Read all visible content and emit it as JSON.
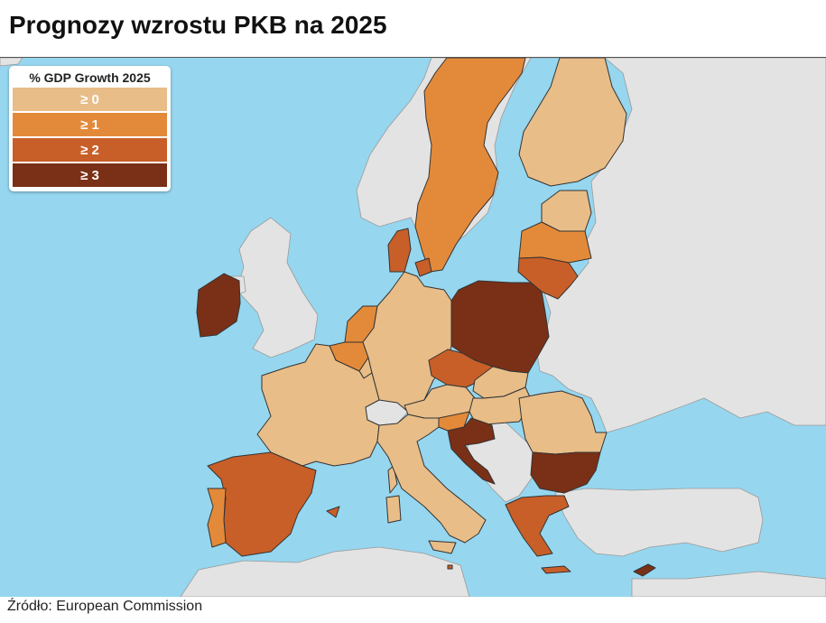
{
  "title": "Prognozy wzrostu PKB na 2025",
  "source": "Źródło: European Commission",
  "legend": {
    "title": "% GDP Growth 2025",
    "items": [
      {
        "label": "≥ 0",
        "color": "#e8bd88"
      },
      {
        "label": "≥ 1",
        "color": "#e38a3a"
      },
      {
        "label": "≥ 2",
        "color": "#c85f28"
      },
      {
        "label": "≥ 3",
        "color": "#7a3016"
      }
    ]
  },
  "colors": {
    "sea": "#96d6ef",
    "non_eu": "#e3e3e3",
    "border": "#333333"
  },
  "map_data": {
    "type": "choropleth",
    "countries": [
      {
        "name": "Poland",
        "category": "≥ 3"
      },
      {
        "name": "Ireland",
        "category": "≥ 3"
      },
      {
        "name": "Bulgaria",
        "category": "≥ 3"
      },
      {
        "name": "Croatia",
        "category": "≥ 3"
      },
      {
        "name": "Cyprus",
        "category": "≥ 3"
      },
      {
        "name": "Spain",
        "category": "≥ 2"
      },
      {
        "name": "Greece",
        "category": "≥ 2"
      },
      {
        "name": "Czechia",
        "category": "≥ 2"
      },
      {
        "name": "Denmark",
        "category": "≥ 2"
      },
      {
        "name": "Lithuania",
        "category": "≥ 2"
      },
      {
        "name": "Malta",
        "category": "≥ 2"
      },
      {
        "name": "Sweden",
        "category": "≥ 1"
      },
      {
        "name": "Portugal",
        "category": "≥ 1"
      },
      {
        "name": "Netherlands",
        "category": "≥ 1"
      },
      {
        "name": "Belgium",
        "category": "≥ 1"
      },
      {
        "name": "Latvia",
        "category": "≥ 1"
      },
      {
        "name": "Slovenia",
        "category": "≥ 1"
      },
      {
        "name": "Finland",
        "category": "≥ 0"
      },
      {
        "name": "Estonia",
        "category": "≥ 0"
      },
      {
        "name": "Germany",
        "category": "≥ 0"
      },
      {
        "name": "France",
        "category": "≥ 0"
      },
      {
        "name": "Italy",
        "category": "≥ 0"
      },
      {
        "name": "Austria",
        "category": "≥ 0"
      },
      {
        "name": "Slovakia",
        "category": "≥ 0"
      },
      {
        "name": "Hungary",
        "category": "≥ 0"
      },
      {
        "name": "Romania",
        "category": "≥ 0"
      },
      {
        "name": "Luxembourg",
        "category": "≥ 0"
      }
    ]
  }
}
